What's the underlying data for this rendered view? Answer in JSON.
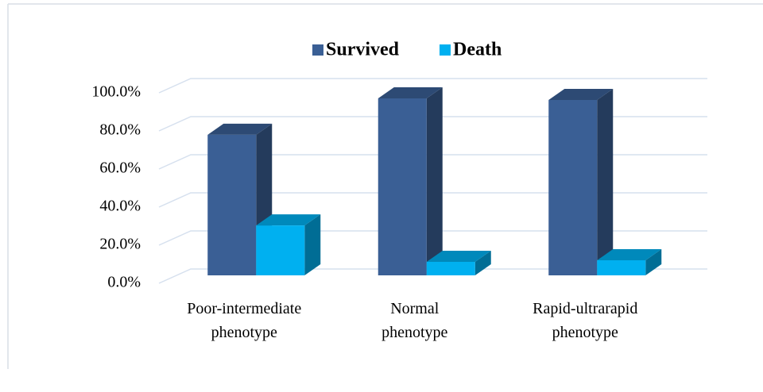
{
  "chart_data": {
    "type": "bar3d",
    "categories": [
      "Poor-intermediate phenotype",
      "Normal phenotype",
      "Rapid-ultrarapid phenotype"
    ],
    "series": [
      {
        "name": "Survived",
        "color": "#3a5f95",
        "values": [
          73.8,
          92.9,
          92.1
        ]
      },
      {
        "name": "Death",
        "color": "#00b0f0",
        "values": [
          26.2,
          7.1,
          7.9
        ]
      }
    ],
    "ylim": [
      0,
      100
    ],
    "yticks": [
      {
        "value": 0,
        "label": "0.0%"
      },
      {
        "value": 20,
        "label": "20.0%"
      },
      {
        "value": 40,
        "label": "40.0%"
      },
      {
        "value": 60,
        "label": "60.0%"
      },
      {
        "value": 80,
        "label": "80.0%"
      },
      {
        "value": 100,
        "label": "100.0%"
      }
    ],
    "grid": true,
    "legend": "top"
  }
}
